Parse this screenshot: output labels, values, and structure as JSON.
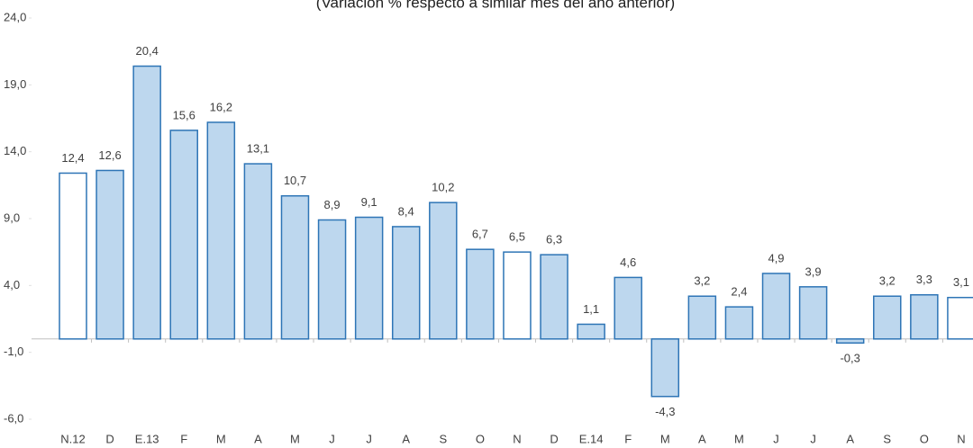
{
  "chart_data": {
    "type": "bar",
    "title": "(Variación % respecto a similar mes del año anterior)",
    "categories": [
      "N.12",
      "D",
      "E.13",
      "F",
      "M",
      "A",
      "M",
      "J",
      "J",
      "A",
      "S",
      "O",
      "N",
      "D",
      "E.14",
      "F",
      "M",
      "A",
      "M",
      "J",
      "J",
      "A",
      "S",
      "O",
      "N"
    ],
    "values": [
      12.4,
      12.6,
      20.4,
      15.6,
      16.2,
      13.1,
      10.7,
      8.9,
      9.1,
      8.4,
      10.2,
      6.7,
      6.5,
      6.3,
      1.1,
      4.6,
      -4.3,
      3.2,
      2.4,
      4.9,
      3.9,
      -0.3,
      3.2,
      3.3,
      3.1
    ],
    "value_labels": [
      "12,4",
      "12,6",
      "20,4",
      "15,6",
      "16,2",
      "13,1",
      "10,7",
      "8,9",
      "9,1",
      "8,4",
      "10,2",
      "6,7",
      "6,5",
      "6,3",
      "1,1",
      "4,6",
      "-4,3",
      "3,2",
      "2,4",
      "4,9",
      "3,9",
      "-0,3",
      "3,2",
      "3,3",
      "3,1"
    ],
    "colors": [
      "#ffffff",
      "#bdd7ee",
      "#bdd7ee",
      "#bdd7ee",
      "#bdd7ee",
      "#bdd7ee",
      "#bdd7ee",
      "#bdd7ee",
      "#bdd7ee",
      "#bdd7ee",
      "#bdd7ee",
      "#bdd7ee",
      "#ffffff",
      "#bdd7ee",
      "#bdd7ee",
      "#bdd7ee",
      "#bdd7ee",
      "#bdd7ee",
      "#bdd7ee",
      "#bdd7ee",
      "#bdd7ee",
      "#bdd7ee",
      "#bdd7ee",
      "#bdd7ee",
      "#ffffff"
    ],
    "edge_color": "#2e75b6",
    "ylim": [
      -6,
      24
    ],
    "yticks": [
      {
        "value": -6,
        "label": "-6,0"
      },
      {
        "value": -1,
        "label": "-1,0"
      },
      {
        "value": 4,
        "label": "4,0"
      },
      {
        "value": 9,
        "label": "9,0"
      },
      {
        "value": 14,
        "label": "14,0"
      },
      {
        "value": 19,
        "label": "19,0"
      },
      {
        "value": 24,
        "label": "24,0"
      }
    ],
    "grid": false
  }
}
